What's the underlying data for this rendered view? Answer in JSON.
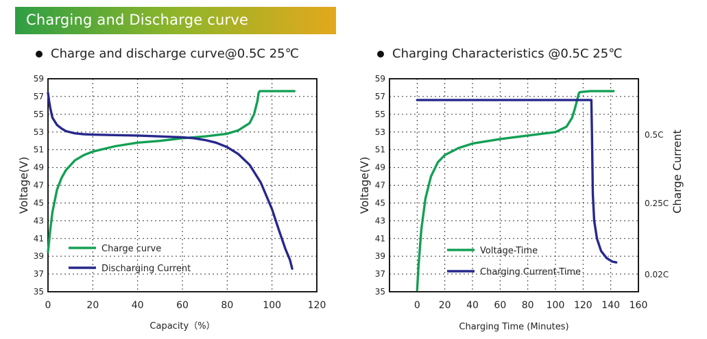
{
  "header": {
    "banner_title": "Charging and Discharge curve"
  },
  "colors": {
    "banner_start": "#2f9e44",
    "banner_end": "#e3a81c",
    "green_curve": "#13a055",
    "blue_curve": "#27288c"
  },
  "charts": {
    "chart1_heading": "Charge and discharge curve@0.5C 25℃",
    "chart2_heading": "Charging Characteristics @0.5C 25℃"
  },
  "chart_data": [
    {
      "type": "line",
      "title": "Charge and discharge curve@0.5C 25℃",
      "xlabel": "Capacity（%）",
      "ylabel": "Voltage(V)",
      "xlim": [
        0,
        120
      ],
      "ylim": [
        35,
        59
      ],
      "x_ticks": [
        "0",
        "20",
        "40",
        "60",
        "80",
        "100",
        "120"
      ],
      "y_ticks": [
        "35",
        "37",
        "39",
        "41",
        "43",
        "45",
        "47",
        "49",
        "51",
        "53",
        "55",
        "57",
        "59"
      ],
      "grid": true,
      "legend_position": "bottom-left",
      "series": [
        {
          "name": "Charge curve",
          "color": "#13a055",
          "x": [
            0,
            1,
            2,
            4,
            6,
            8,
            12,
            16,
            20,
            30,
            40,
            50,
            60,
            70,
            80,
            85,
            90,
            92,
            93.5,
            94,
            94.5,
            95,
            100,
            110
          ],
          "y": [
            39.5,
            42,
            44,
            46.5,
            47.8,
            48.7,
            49.8,
            50.4,
            50.8,
            51.4,
            51.8,
            52.0,
            52.3,
            52.5,
            52.8,
            53.2,
            54.0,
            55.0,
            56.5,
            57.4,
            57.6,
            57.6,
            57.6,
            57.6
          ]
        },
        {
          "name": "Discharging Current",
          "color": "#27288c",
          "x": [
            0,
            0.5,
            1,
            2,
            4,
            6,
            8,
            12,
            16,
            20,
            30,
            40,
            50,
            60,
            65,
            70,
            75,
            80,
            85,
            90,
            95,
            100,
            103,
            106,
            108,
            109
          ],
          "y": [
            57.4,
            56.5,
            55.7,
            54.6,
            53.8,
            53.4,
            53.1,
            52.85,
            52.75,
            52.7,
            52.65,
            52.6,
            52.5,
            52.4,
            52.3,
            52.1,
            51.8,
            51.3,
            50.5,
            49.3,
            47.3,
            44.3,
            42.0,
            39.8,
            38.6,
            37.6
          ]
        }
      ]
    },
    {
      "type": "line",
      "title": "Charging Characteristics @0.5C 25℃",
      "xlabel": "Charging Time (Minutes)",
      "ylabel": "Voltage(V)",
      "y2label": "Charge Current",
      "xlim": [
        -20,
        160
      ],
      "ylim": [
        35,
        59
      ],
      "x_ticks": [
        "0",
        "20",
        "40",
        "60",
        "80",
        "100",
        "120",
        "140",
        "160"
      ],
      "y_ticks": [
        "35",
        "37",
        "39",
        "41",
        "43",
        "45",
        "47",
        "49",
        "51",
        "53",
        "55",
        "57",
        "59"
      ],
      "y2_ticks": [
        "0.5C",
        "0.25C",
        "0.02C"
      ],
      "grid": true,
      "legend_position": "bottom-left",
      "series": [
        {
          "name": "Voltage-Time",
          "color": "#13a055",
          "x": [
            0,
            1,
            3,
            6,
            10,
            15,
            20,
            30,
            40,
            60,
            80,
            100,
            108,
            112,
            114,
            116,
            117,
            118,
            125,
            135,
            142
          ],
          "y": [
            35.2,
            38.0,
            42.0,
            45.5,
            48.0,
            49.6,
            50.4,
            51.2,
            51.7,
            52.2,
            52.6,
            53.0,
            53.6,
            54.6,
            55.6,
            56.8,
            57.4,
            57.5,
            57.6,
            57.6,
            57.6
          ]
        },
        {
          "name": "Charging Current-Time",
          "color": "#27288c",
          "x": [
            0,
            20,
            40,
            60,
            80,
            100,
            120,
            126,
            126.5,
            127,
            128,
            130,
            133,
            137,
            141,
            144
          ],
          "y": [
            56.6,
            56.6,
            56.6,
            56.6,
            56.6,
            56.6,
            56.6,
            56.6,
            52.0,
            46.0,
            43.0,
            41.0,
            39.6,
            38.8,
            38.4,
            38.3
          ]
        }
      ]
    }
  ]
}
